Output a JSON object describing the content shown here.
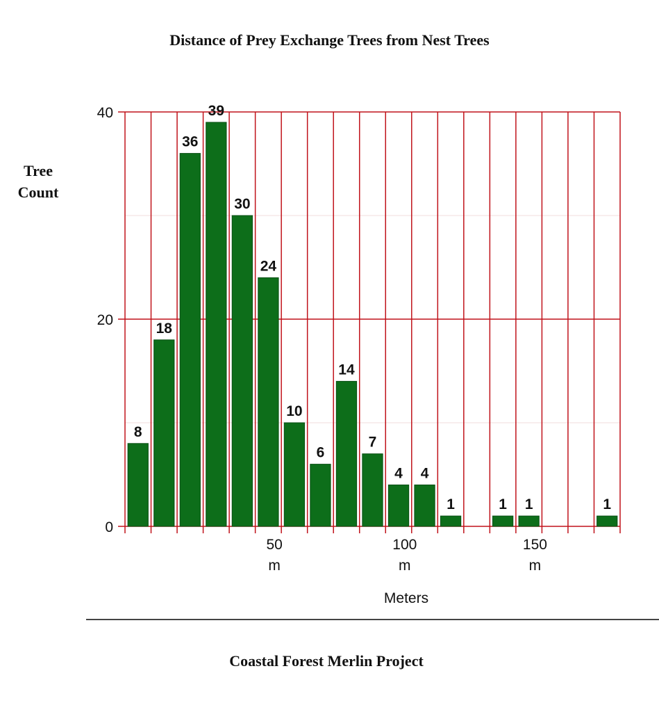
{
  "chart_data": {
    "type": "bar",
    "title": "Distance of Prey Exchange Trees from Nest Trees",
    "ylabel_lines": [
      "Tree",
      "Count"
    ],
    "xlabel": "Meters",
    "footer": "Coastal Forest Merlin Project",
    "ylim": [
      0,
      40
    ],
    "y_ticks": [
      "0",
      "20",
      "40"
    ],
    "x_ticks": [
      {
        "slot": 6,
        "lines": [
          "50",
          "m"
        ]
      },
      {
        "slot": 11,
        "lines": [
          "100",
          "m"
        ]
      },
      {
        "slot": 16,
        "lines": [
          "150",
          "m"
        ]
      }
    ],
    "bar_slots": 19,
    "values": [
      8,
      18,
      36,
      39,
      30,
      24,
      10,
      6,
      14,
      7,
      4,
      4,
      1,
      null,
      1,
      1,
      null,
      null,
      1
    ],
    "data_labels": [
      "8",
      "18",
      "36",
      "39",
      "30",
      "24",
      "10",
      "6",
      "14",
      "7",
      "4",
      "4",
      "1",
      "",
      "1",
      "1",
      "",
      "",
      "1"
    ],
    "grid": true,
    "colors": {
      "bar": "#0d6e1a",
      "bar_edge": "#0a4f14",
      "grid": "#c0121a",
      "minor_grid": "#f2dcdc"
    }
  }
}
